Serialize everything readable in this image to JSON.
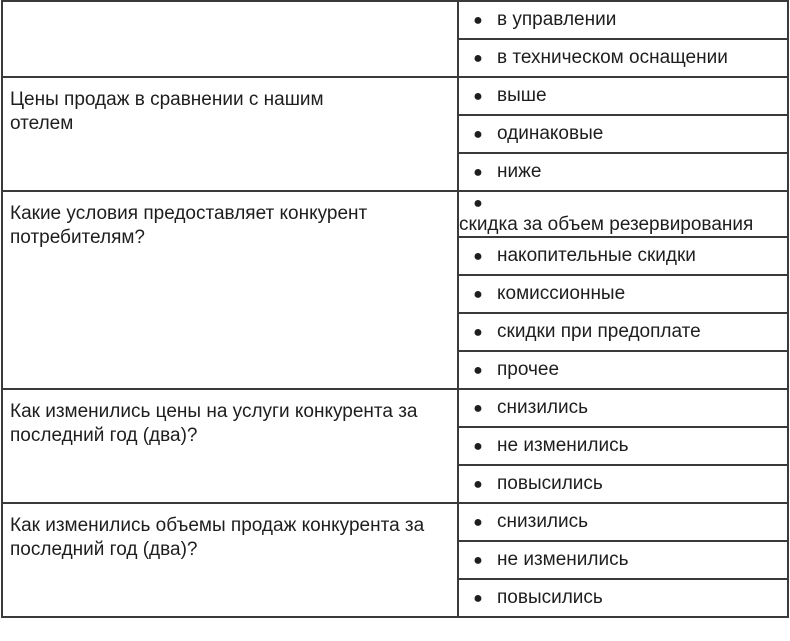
{
  "rows": [
    {
      "question": "",
      "options": [
        "в управлении",
        "в техническом оснащении"
      ]
    },
    {
      "question": "Цены продаж в сравнении с нашим отелем",
      "options": [
        "выше",
        "одинаковые",
        "ниже"
      ]
    },
    {
      "question": "Какие условия предоставляет конкурент потребителям?",
      "options": [
        "скидка за объем резервирования",
        "накопительные скидки",
        "комиссионные",
        "скидки при предоплате",
        "прочее"
      ]
    },
    {
      "question": "Как изменились цены на услуги конкурента за последний год (два)?",
      "options": [
        "снизились",
        "не изменились",
        "повысились"
      ]
    },
    {
      "question": "Как изменились объемы продаж конкурента за последний год (два)?",
      "options": [
        "снизились",
        "не изменились",
        "повысились"
      ]
    }
  ],
  "bullet_icon": "bullet-dot"
}
